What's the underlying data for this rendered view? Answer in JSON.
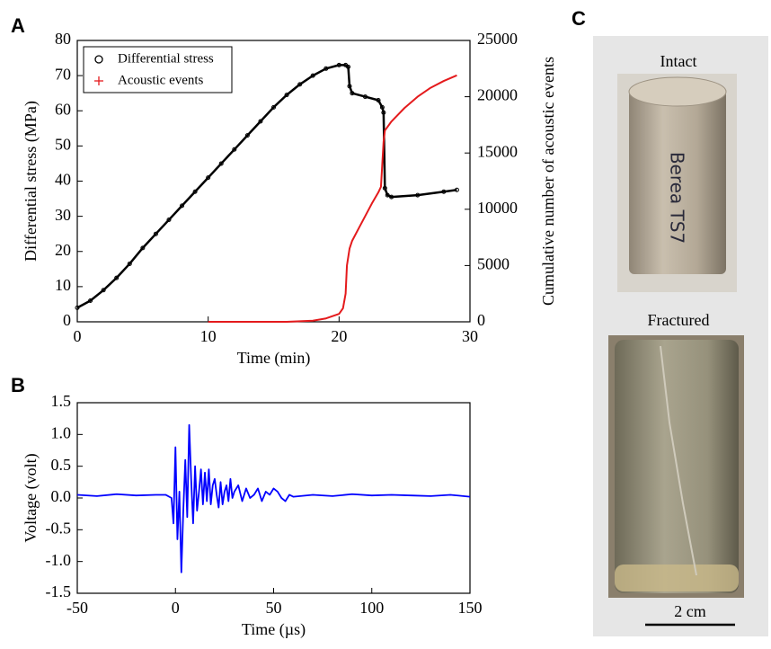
{
  "panels": {
    "a": "A",
    "b": "B",
    "c": "C"
  },
  "photos": {
    "intact": "Intact",
    "sample_label": "Berea TS7",
    "fractured": "Fractured",
    "scale_bar": "2 cm"
  },
  "chart_data": [
    {
      "type": "line",
      "x_label": "Time (min)",
      "y_label": "Differential stress (MPa)",
      "y2_label": "Cumulative number of acoustic events",
      "xlim": [
        0,
        30
      ],
      "xticks": [
        0,
        10,
        20,
        30
      ],
      "ylim": [
        0,
        80
      ],
      "yticks": [
        0,
        10,
        20,
        30,
        40,
        50,
        60,
        70,
        80
      ],
      "y2lim": [
        0,
        25000
      ],
      "y2ticks": [
        0,
        5000,
        10000,
        15000,
        20000,
        25000
      ],
      "legend": "upper left",
      "series": [
        {
          "name": "Differential stress",
          "color": "#000000",
          "marker": "o",
          "x": [
            0,
            1,
            2,
            3,
            4,
            5,
            6,
            7,
            8,
            9,
            10,
            11,
            12,
            13,
            14,
            15,
            16,
            17,
            18,
            19,
            20,
            20.5,
            20.7,
            20.8,
            21,
            22,
            23,
            23.3,
            23.4,
            23.5,
            23.7,
            24,
            26,
            28,
            29
          ],
          "values": [
            4,
            6,
            9,
            12.5,
            16.5,
            21,
            25,
            29,
            33,
            37,
            41,
            45,
            49,
            53,
            57,
            61,
            64.5,
            67.5,
            70,
            72,
            73,
            73,
            72.5,
            67,
            65,
            64,
            63,
            61,
            59.5,
            38,
            36,
            35.5,
            36,
            37,
            37.5
          ]
        },
        {
          "name": "Acoustic events",
          "color": "#e41a1c",
          "marker": "+",
          "axis": "y2",
          "x": [
            10,
            16,
            18,
            19,
            20,
            20.3,
            20.5,
            20.6,
            20.8,
            21,
            21.5,
            22,
            22.5,
            23,
            23.2,
            23.3,
            23.4,
            23.5,
            24,
            25,
            26,
            27,
            28,
            29
          ],
          "values": [
            0,
            0,
            100,
            300,
            700,
            1200,
            2500,
            5000,
            6500,
            7200,
            8300,
            9400,
            10500,
            11500,
            12000,
            14000,
            16000,
            17000,
            17800,
            19000,
            20000,
            20800,
            21400,
            21900
          ]
        }
      ]
    },
    {
      "type": "line",
      "x_label": "Time (µs)",
      "y_label": "Voltage (volt)",
      "xlim": [
        -50,
        150
      ],
      "xticks": [
        -50,
        0,
        50,
        100,
        150
      ],
      "ylim": [
        -1.5,
        1.5
      ],
      "yticks": [
        -1.5,
        {
          "value": -1,
          "label": "-1.0"
        },
        -0.5,
        {
          "value": 0,
          "label": "0.0"
        },
        0.5,
        {
          "value": 1,
          "label": "1.0"
        },
        1.5
      ],
      "x": [
        -50,
        -40,
        -30,
        -20,
        -10,
        -5,
        -2,
        -1,
        0,
        1,
        2,
        3,
        4,
        5,
        6,
        7,
        8,
        9,
        10,
        11,
        12,
        13,
        14,
        15,
        16,
        17,
        18,
        19,
        20,
        21,
        22,
        23,
        24,
        25,
        26,
        27,
        28,
        29,
        30,
        32,
        34,
        36,
        38,
        40,
        42,
        44,
        46,
        48,
        50,
        52,
        54,
        56,
        58,
        60,
        70,
        80,
        90,
        100,
        110,
        120,
        130,
        140,
        150
      ],
      "series": [
        {
          "color": "#0000ff",
          "values": [
            0.05,
            0.03,
            0.06,
            0.04,
            0.05,
            0.05,
            0.0,
            -0.4,
            0.8,
            -0.65,
            0.1,
            -1.17,
            -0.2,
            0.6,
            -0.3,
            1.15,
            0.3,
            -0.4,
            0.5,
            -0.2,
            0.1,
            0.45,
            -0.1,
            0.4,
            -0.05,
            0.45,
            -0.1,
            0.2,
            0.3,
            0.05,
            -0.15,
            0.25,
            -0.1,
            0.1,
            0.2,
            -0.05,
            0.3,
            0.0,
            0.1,
            0.2,
            -0.05,
            0.15,
            0.0,
            0.05,
            0.15,
            -0.05,
            0.1,
            0.05,
            0.15,
            0.1,
            0.0,
            -0.05,
            0.05,
            0.02,
            0.05,
            0.03,
            0.06,
            0.04,
            0.05,
            0.04,
            0.03,
            0.05,
            0.02
          ]
        }
      ]
    }
  ]
}
